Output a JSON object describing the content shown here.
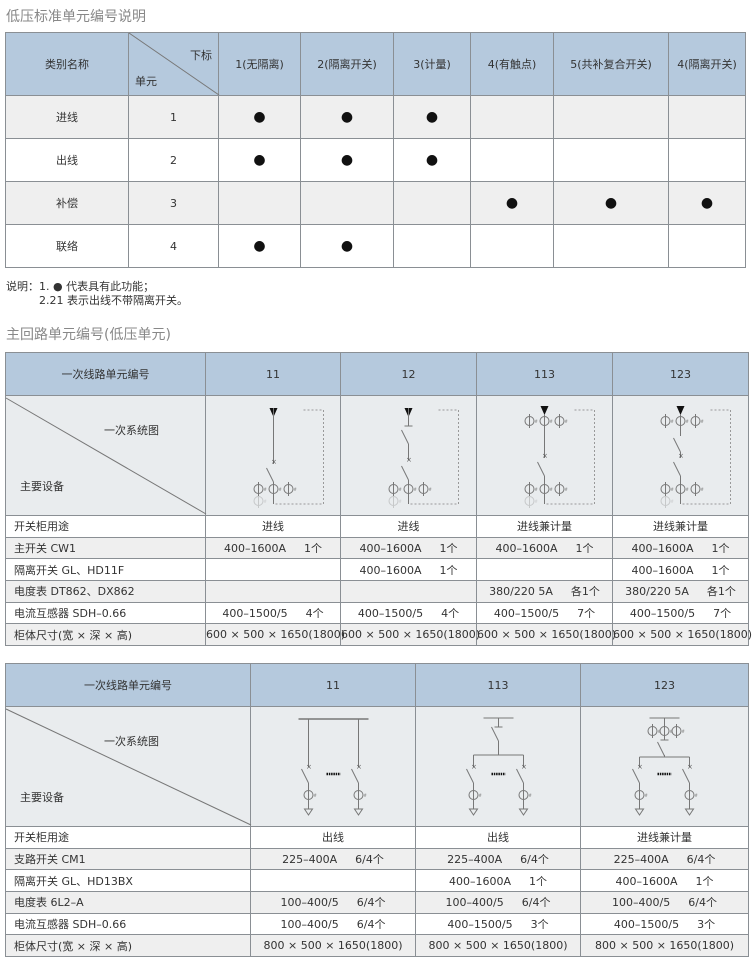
{
  "section1_title": "低压标准单元编号说明",
  "table1": {
    "corner": {
      "left": "类别名称",
      "top": "下标",
      "bottom": "单元"
    },
    "columns": [
      "1(无隔离)",
      "2(隔离开关)",
      "3(计量)",
      "4(有触点)",
      "5(共补复合开关)",
      "4(隔离开关)"
    ],
    "rows": [
      {
        "name": "进线",
        "unit": "1",
        "marks": [
          true,
          true,
          true,
          false,
          false,
          false
        ]
      },
      {
        "name": "出线",
        "unit": "2",
        "marks": [
          true,
          true,
          true,
          false,
          false,
          false
        ]
      },
      {
        "name": "补偿",
        "unit": "3",
        "marks": [
          false,
          false,
          false,
          true,
          true,
          true
        ]
      },
      {
        "name": "联络",
        "unit": "4",
        "marks": [
          true,
          true,
          false,
          false,
          false,
          false
        ]
      }
    ]
  },
  "notes": {
    "label": "说明：",
    "line1": "1. ● 代表具有此功能；",
    "line2": "2.21 表示出线不带隔离开关。"
  },
  "section2_title": "主回路单元编号(低压单元)",
  "table2": {
    "header": "一次线路单元编号",
    "diagram_label": "一次系统图",
    "equipment_label": "主要设备",
    "columns": [
      "11",
      "12",
      "113",
      "123"
    ],
    "rows": [
      {
        "name": "开关柜用途",
        "cells": [
          [
            "进线"
          ],
          [
            "进线"
          ],
          [
            "进线兼计量"
          ],
          [
            "进线兼计量"
          ]
        ]
      },
      {
        "name": "主开关 CW1",
        "cells": [
          [
            "400–1600A",
            "1个"
          ],
          [
            "400–1600A",
            "1个"
          ],
          [
            "400–1600A",
            "1个"
          ],
          [
            "400–1600A",
            "1个"
          ]
        ]
      },
      {
        "name": "隔离开关 GL、HD11F",
        "cells": [
          [],
          [
            "400–1600A",
            "1个"
          ],
          [],
          [
            "400–1600A",
            "1个"
          ]
        ]
      },
      {
        "name": "电度表 DT862、DX862",
        "cells": [
          [],
          [],
          [
            "380/220  5A",
            "各1个"
          ],
          [
            "380/220  5A",
            "各1个"
          ]
        ]
      },
      {
        "name": "电流互感器 SDH–0.66",
        "cells": [
          [
            "400–1500/5",
            "4个"
          ],
          [
            "400–1500/5",
            "4个"
          ],
          [
            "400–1500/5",
            "7个"
          ],
          [
            "400–1500/5",
            "7个"
          ]
        ]
      },
      {
        "name": "柜体尺寸(宽 × 深 × 高)",
        "cells": [
          [
            "600 × 500 × 1650(1800)"
          ],
          [
            "600 × 500 × 1650(1800)"
          ],
          [
            "600 × 500 × 1650(1800)"
          ],
          [
            "600 × 500 × 1650(1800)"
          ]
        ]
      }
    ]
  },
  "table3": {
    "header": "一次线路单元编号",
    "diagram_label": "一次系统图",
    "equipment_label": "主要设备",
    "columns": [
      "11",
      "113",
      "123"
    ],
    "rows": [
      {
        "name": "开关柜用途",
        "cells": [
          [
            "出线"
          ],
          [
            "出线"
          ],
          [
            "进线兼计量"
          ]
        ]
      },
      {
        "name": "支路开关 CM1",
        "cells": [
          [
            "225–400A",
            "6/4个"
          ],
          [
            "225–400A",
            "6/4个"
          ],
          [
            "225–400A",
            "6/4个"
          ]
        ]
      },
      {
        "name": "隔离开关 GL、HD13BX",
        "cells": [
          [],
          [
            "400–1600A",
            "1个"
          ],
          [
            "400–1600A",
            "1个"
          ]
        ]
      },
      {
        "name": "电度表 6L2–A",
        "cells": [
          [
            "100–400/5",
            "6/4个"
          ],
          [
            "100–400/5",
            "6/4个"
          ],
          [
            "100–400/5",
            "6/4个"
          ]
        ]
      },
      {
        "name": "电流互感器 SDH–0.66",
        "cells": [
          [
            "100–400/5",
            "6/4个"
          ],
          [
            "400–1500/5",
            "3个"
          ],
          [
            "400–1500/5",
            "3个"
          ]
        ]
      },
      {
        "name": "柜体尺寸(宽 × 深 × 高)",
        "cells": [
          [
            "800 × 500 × 1650(1800)"
          ],
          [
            "800 × 500 × 1650(1800)"
          ],
          [
            "800 × 500 × 1650(1800)"
          ]
        ]
      }
    ]
  },
  "colors": {
    "header": "#b5c9dd",
    "row_alt": "#efefef",
    "diagram_bg": "#e9ecee",
    "border": "#8a8f94"
  }
}
